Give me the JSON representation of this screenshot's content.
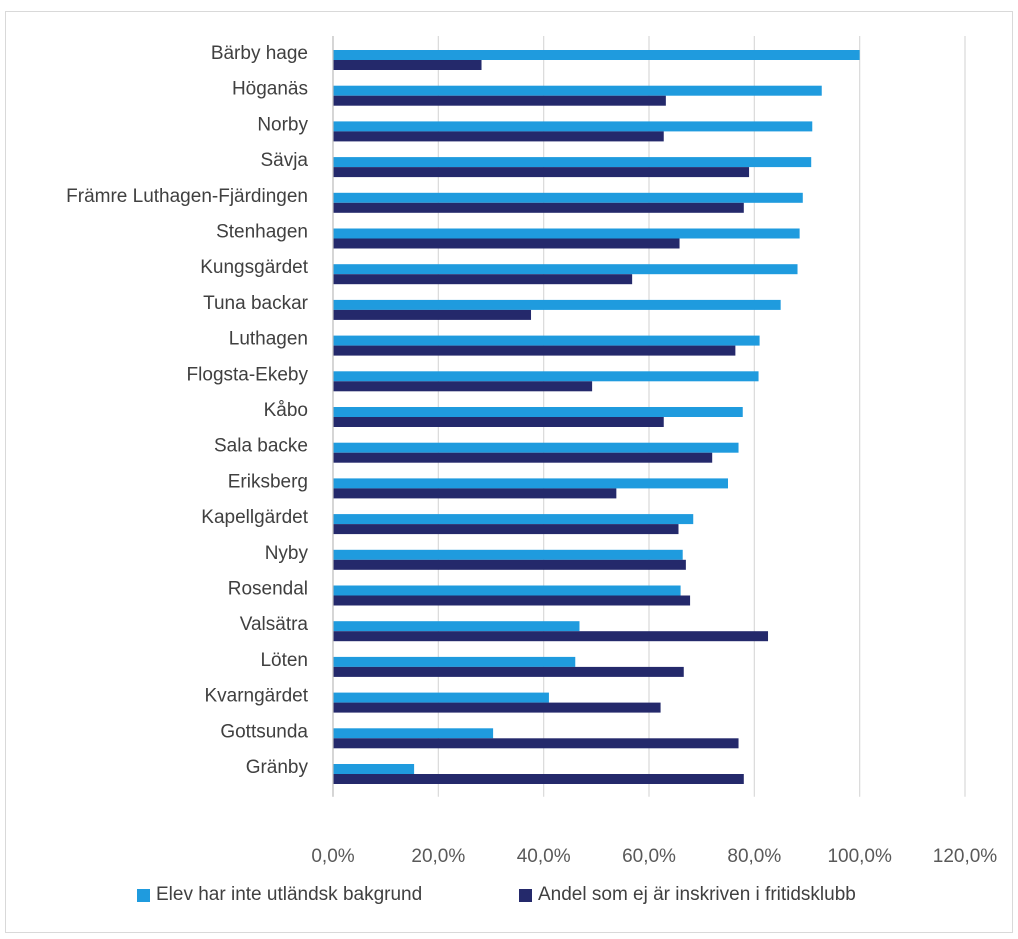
{
  "chart_data": {
    "type": "bar",
    "orientation": "horizontal",
    "categories": [
      "Bärby hage",
      "Höganäs",
      "Norby",
      "Sävja",
      "Främre  Luthagen-Fjärdingen",
      "Stenhagen",
      "Kungsgärdet",
      "Tuna backar",
      "Luthagen",
      "Flogsta-Ekeby",
      "Kåbo",
      "Sala backe",
      "Eriksberg",
      "Kapellgärdet",
      "Nyby",
      "Rosendal",
      "Valsätra",
      "Löten",
      "Kvarngärdet",
      "Gottsunda",
      "Gränby"
    ],
    "series": [
      {
        "name": "Elev har inte utländsk bakgrund",
        "color": "#1f9bde",
        "values": [
          100.0,
          92.8,
          91.0,
          90.8,
          89.2,
          88.6,
          88.2,
          85.0,
          81.0,
          80.8,
          77.8,
          77.0,
          75.0,
          68.4,
          66.4,
          66.0,
          46.8,
          46.0,
          41.0,
          30.4,
          15.4
        ]
      },
      {
        "name": "Andel som ej är inskriven i fritidsklubb",
        "color": "#24296b",
        "values": [
          28.2,
          63.2,
          62.8,
          79.0,
          78.0,
          65.8,
          56.8,
          37.6,
          76.4,
          49.2,
          62.8,
          72.0,
          53.8,
          65.6,
          67.0,
          67.8,
          82.6,
          66.6,
          62.2,
          77.0,
          78.0
        ]
      }
    ],
    "xlim": [
      0,
      120
    ],
    "xticks": [
      "0,0%",
      "20,0%",
      "40,0%",
      "60,0%",
      "80,0%",
      "100,0%",
      "120,0%"
    ],
    "grid": true,
    "legend_position": "bottom",
    "title": "",
    "xlabel": "",
    "ylabel": ""
  }
}
